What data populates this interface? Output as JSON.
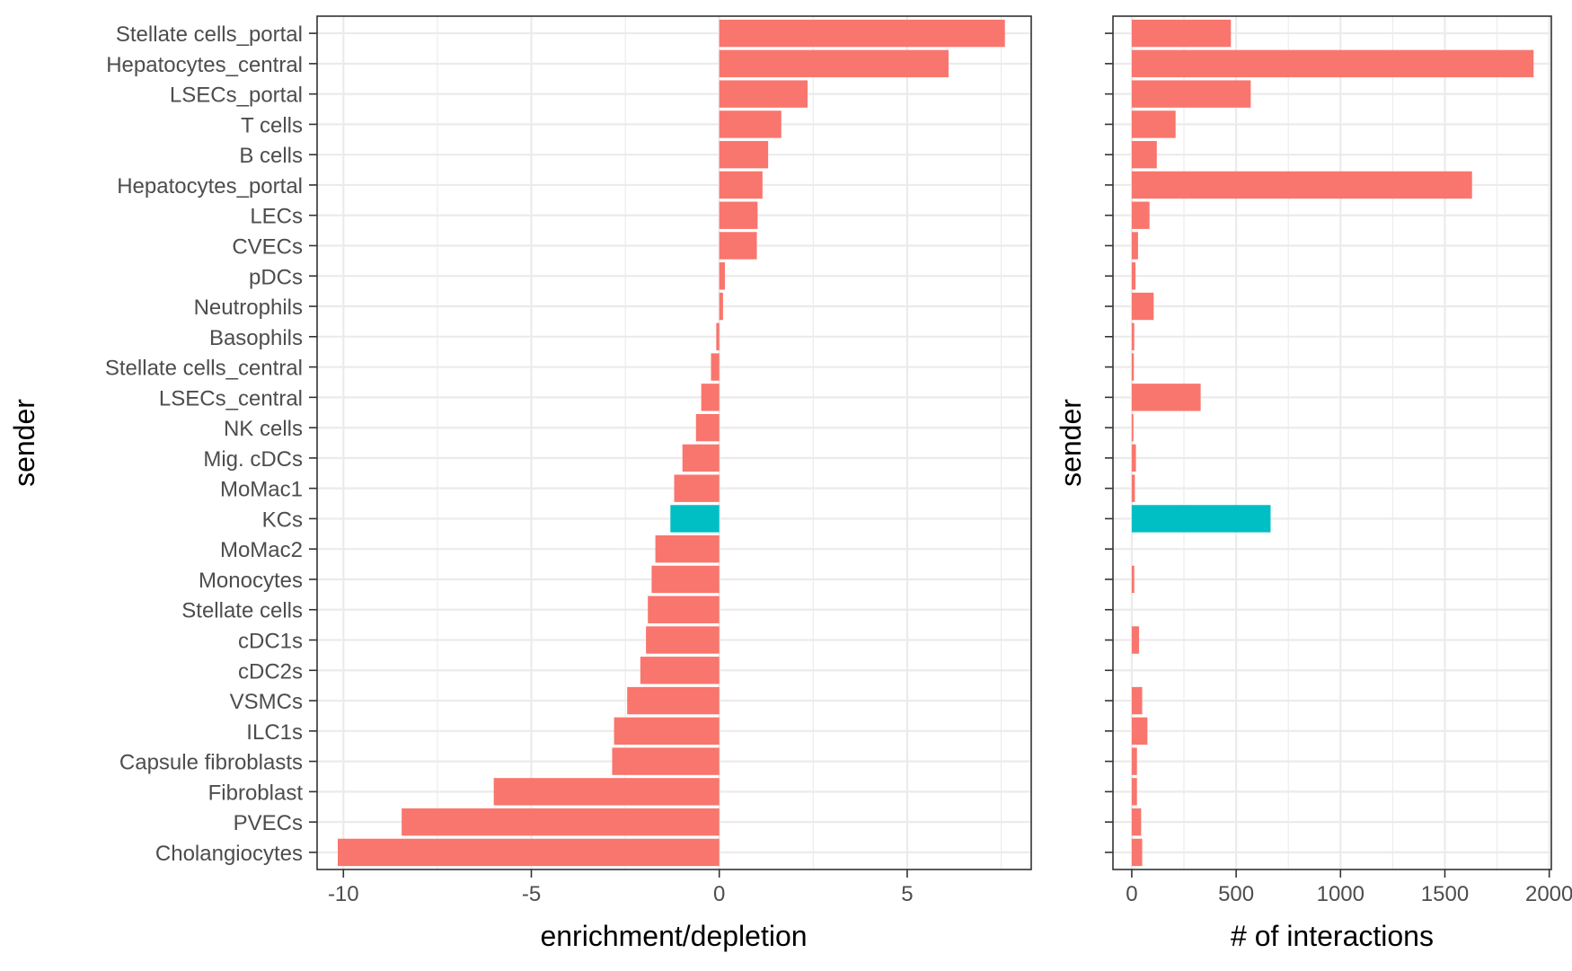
{
  "colors": {
    "positive": "#F8766D",
    "highlight": "#00BFC4",
    "grid": "#EBEBEB",
    "panel_border": "#333333",
    "tick_text": "#4D4D4D"
  },
  "chart_data": [
    {
      "type": "bar",
      "orientation": "horizontal",
      "xlabel": "enrichment/depletion",
      "ylabel": "sender",
      "xlim": [
        -10.7,
        8.3
      ],
      "xticks": [
        -10,
        -5,
        0,
        5
      ],
      "xtick_labels": [
        "-10",
        "-5",
        "0",
        "5"
      ],
      "grid": true,
      "categories": [
        "Stellate cells_portal",
        "Hepatocytes_central",
        "LSECs_portal",
        "T cells",
        "B cells",
        "Hepatocytes_portal",
        "LECs",
        "CVECs",
        "pDCs",
        "Neutrophils",
        "Basophils",
        "Stellate cells_central",
        "LSECs_central",
        "NK cells",
        "Mig. cDCs",
        "MoMac1",
        "KCs",
        "MoMac2",
        "Monocytes",
        "Stellate cells",
        "cDC1s",
        "cDC2s",
        "VSMCs",
        "ILC1s",
        "Capsule fibroblasts",
        "Fibroblast",
        "PVECs",
        "Cholangiocytes"
      ],
      "values": [
        7.6,
        6.1,
        2.35,
        1.65,
        1.3,
        1.15,
        1.02,
        1.0,
        0.15,
        0.1,
        -0.08,
        -0.22,
        -0.48,
        -0.62,
        -0.98,
        -1.2,
        -1.3,
        -1.7,
        -1.8,
        -1.9,
        -1.95,
        -2.1,
        -2.45,
        -2.8,
        -2.85,
        -6.0,
        -8.45,
        -10.15
      ],
      "highlight": "KCs"
    },
    {
      "type": "bar",
      "orientation": "horizontal",
      "xlabel": "# of interactions",
      "ylabel": "sender",
      "xlim": [
        -90,
        2010
      ],
      "xticks": [
        0,
        500,
        1000,
        1500,
        2000
      ],
      "xtick_labels": [
        "0",
        "500",
        "1000",
        "1500",
        "2000"
      ],
      "grid": true,
      "categories": [
        "Stellate cells_portal",
        "Hepatocytes_central",
        "LSECs_portal",
        "T cells",
        "B cells",
        "Hepatocytes_portal",
        "LECs",
        "CVECs",
        "pDCs",
        "Neutrophils",
        "Basophils",
        "Stellate cells_central",
        "LSECs_central",
        "NK cells",
        "Mig. cDCs",
        "MoMac1",
        "KCs",
        "MoMac2",
        "Monocytes",
        "Stellate cells",
        "cDC1s",
        "cDC2s",
        "VSMCs",
        "ILC1s",
        "Capsule fibroblasts",
        "Fibroblast",
        "PVECs",
        "Cholangiocytes"
      ],
      "values": [
        475,
        1925,
        570,
        210,
        120,
        1630,
        85,
        30,
        18,
        105,
        12,
        10,
        330,
        8,
        20,
        15,
        665,
        0,
        12,
        0,
        35,
        0,
        50,
        75,
        25,
        25,
        45,
        50
      ],
      "highlight": "KCs"
    }
  ]
}
